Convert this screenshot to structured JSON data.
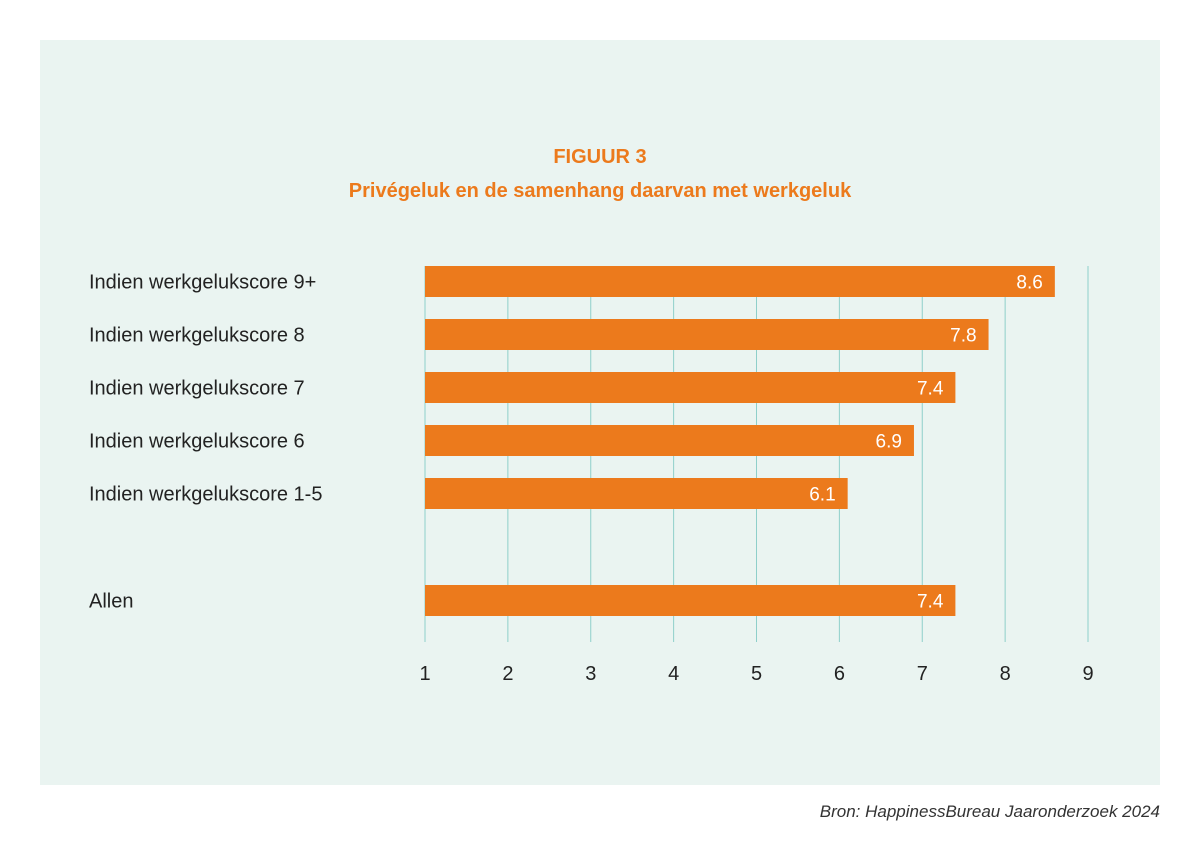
{
  "figure_label": "FIGUUR 3",
  "source": "Bron: HappinessBureau Jaaronderzoek 2024",
  "colors": {
    "bar": "#ec7a1c",
    "grid": "#8ecfca",
    "panel": "#eaf4f1",
    "title": "#ec7a1c"
  },
  "chart_data": {
    "type": "bar",
    "orientation": "horizontal",
    "title": "Privégeluk en de samenhang daarvan met werkgeluk",
    "categories": [
      "Indien werkgelukscore 9+",
      "Indien werkgelukscore 8",
      "Indien werkgelukscore 7",
      "Indien werkgelukscore 6",
      "Indien werkgelukscore 1-5",
      "Allen"
    ],
    "values": [
      8.6,
      7.8,
      7.4,
      6.9,
      6.1,
      7.4
    ],
    "value_labels": [
      "8.6",
      "7.8",
      "7.4",
      "6.9",
      "6.1",
      "7.4"
    ],
    "xlim": [
      1,
      9
    ],
    "xticks": [
      "1",
      "2",
      "3",
      "4",
      "5",
      "6",
      "7",
      "8",
      "9"
    ],
    "grid": true,
    "legend": "none"
  }
}
